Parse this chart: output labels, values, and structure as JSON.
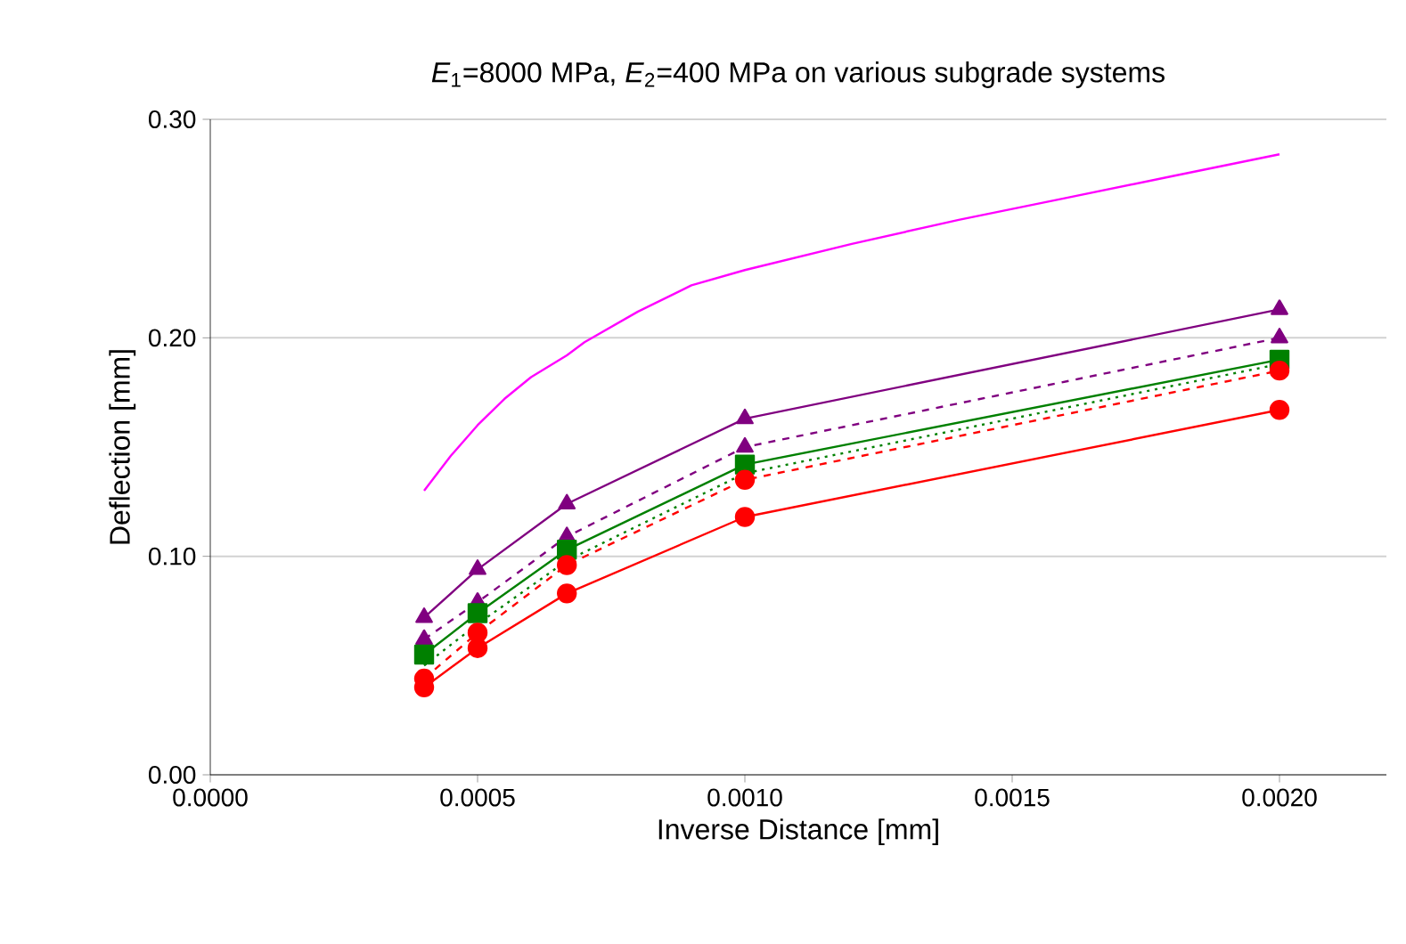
{
  "chart_data": {
    "type": "line",
    "title": "*E*$_{1}$=8000 MPa, *E*$_{2}$=400 MPa on various subgrade systems",
    "xlabel": "Inverse Distance  [mm]",
    "ylabel": "Deflection  [mm]",
    "xlim": [
      0,
      0.0022
    ],
    "ylim": [
      0,
      0.3
    ],
    "xticks": [
      {
        "value": 0,
        "label": "0.0000"
      },
      {
        "value": 0.0005,
        "label": "0.0005"
      },
      {
        "value": 0.001,
        "label": "0.0010"
      },
      {
        "value": 0.0015,
        "label": "0.0015"
      },
      {
        "value": 0.002,
        "label": "0.0020"
      }
    ],
    "yticks": [
      {
        "value": 0,
        "label": "0.00"
      },
      {
        "value": 0.1,
        "label": "0.10"
      },
      {
        "value": 0.2,
        "label": "0.20"
      },
      {
        "value": 0.3,
        "label": "0.30"
      }
    ],
    "grid": "y",
    "series": [
      {
        "color": "#ff00ff",
        "marker": "none",
        "line_style": "solid",
        "x": [
          0.0004,
          0.00045,
          0.0005,
          0.00055,
          0.0006,
          0.000667,
          0.0007,
          0.0008,
          0.0009,
          0.001,
          0.0012,
          0.0014,
          0.0016,
          0.0018,
          0.002
        ],
        "values": [
          0.13,
          0.146,
          0.16,
          0.172,
          0.182,
          0.192,
          0.198,
          0.212,
          0.224,
          0.231,
          0.243,
          0.254,
          0.264,
          0.274,
          0.284
        ]
      },
      {
        "color": "#800080",
        "marker": "triangle",
        "line_style": "solid",
        "x": [
          0.0004,
          0.0005,
          0.000667,
          0.001,
          0.002
        ],
        "values": [
          0.072,
          0.094,
          0.124,
          0.163,
          0.213
        ]
      },
      {
        "color": "#800080",
        "marker": "triangle",
        "line_style": "dashed",
        "x": [
          0.0004,
          0.0005,
          0.000667,
          0.001,
          0.002
        ],
        "values": [
          0.062,
          0.079,
          0.109,
          0.15,
          0.2
        ]
      },
      {
        "color": "#008000",
        "marker": "square",
        "line_style": "solid",
        "x": [
          0.0004,
          0.0005,
          0.000667,
          0.001,
          0.002
        ],
        "values": [
          0.055,
          0.074,
          0.103,
          0.142,
          0.19
        ]
      },
      {
        "color": "#008000",
        "marker": "none",
        "line_style": "dotted",
        "x": [
          0.0004,
          0.0005,
          0.000667,
          0.001,
          0.002
        ],
        "values": [
          0.05,
          0.069,
          0.098,
          0.138,
          0.188
        ]
      },
      {
        "color": "#ff0000",
        "marker": "circle",
        "line_style": "dashed",
        "x": [
          0.0004,
          0.0005,
          0.000667,
          0.001,
          0.002
        ],
        "values": [
          0.044,
          0.065,
          0.096,
          0.135,
          0.185
        ]
      },
      {
        "color": "#ff0000",
        "marker": "circle",
        "line_style": "solid",
        "x": [
          0.0004,
          0.0005,
          0.000667,
          0.001,
          0.002
        ],
        "values": [
          0.04,
          0.058,
          0.083,
          0.118,
          0.167
        ]
      }
    ]
  }
}
